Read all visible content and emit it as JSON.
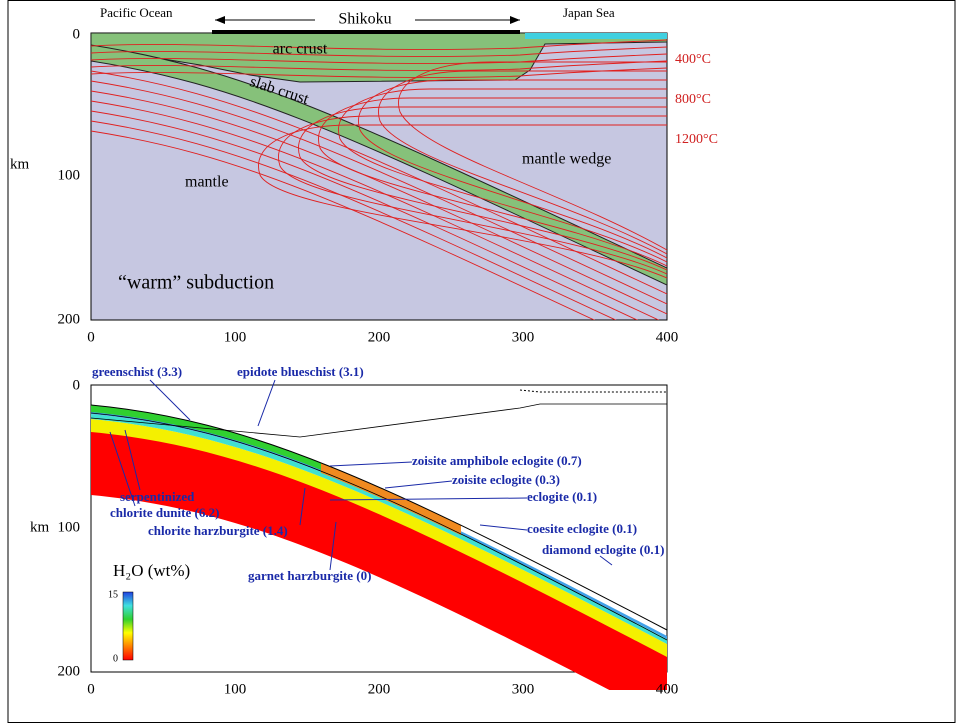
{
  "top_panel": {
    "header": {
      "left": "Pacific Ocean",
      "center": "Shikoku",
      "right": "Japan Sea"
    },
    "regions": {
      "arc_crust": "arc crust",
      "slab_crust": "slab crust",
      "mantle": "mantle",
      "mantle_wedge": "mantle wedge"
    },
    "caption": "“warm” subduction",
    "isotherms": [
      "400°C",
      "800°C",
      "1200°C"
    ],
    "y_axis_label": "km",
    "yticks": [
      "0",
      "100",
      "200"
    ],
    "xticks": [
      "0",
      "100",
      "200",
      "300",
      "400"
    ]
  },
  "bottom_panel": {
    "labels": {
      "greenschist": "greenschist (3.3)",
      "epidote_blueschist": "epidote blueschist (3.1)",
      "zoisite_amphibole_eclogite": "zoisite amphibole eclogite (0.7)",
      "zoisite_eclogite": "zoisite eclogite (0.3)",
      "eclogite": "eclogite (0.1)",
      "coesite_eclogite": "coesite eclogite (0.1)",
      "diamond_eclogite": "diamond eclogite (0.1)",
      "serpentinized": "serpentinized",
      "chlorite_dunite": "chlorite dunite (6.2)",
      "chlorite_harzburgite": "chlorite harzburgite (1.4)",
      "garnet_harzburgite": "garnet harzburgite (0)"
    },
    "legend": {
      "title": "H₂O (wt%)",
      "max": "15",
      "min": "0"
    },
    "y_axis_label": "km",
    "yticks": [
      "0",
      "100",
      "200"
    ],
    "xticks": [
      "0",
      "100",
      "200",
      "300",
      "400"
    ]
  }
}
